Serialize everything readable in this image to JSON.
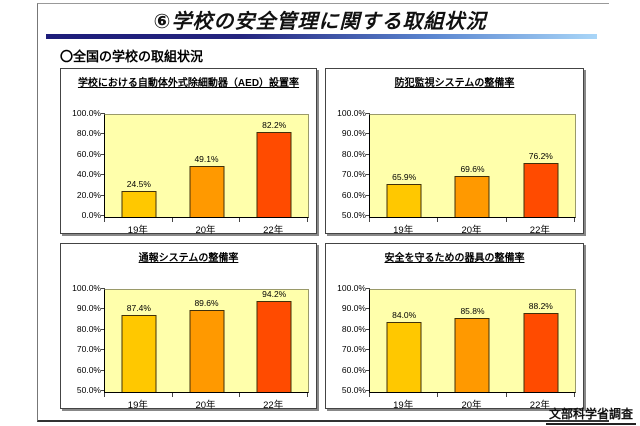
{
  "header": {
    "title": "⑥学校の安全管理に関する取組状況"
  },
  "section_heading": "〇全国の学校の取組状況",
  "footer": {
    "source_label": "文部科学省調査"
  },
  "colors": {
    "bar_19": "#ffc800",
    "bar_20": "#ff9900",
    "bar_22": "#ff4b00",
    "plot_bg": "#ffffab",
    "divider_start": "#1d1d7a",
    "divider_end": "#a9d6f8"
  },
  "chart_data": [
    {
      "id": "aed-installation",
      "type": "bar",
      "title": "学校における自動体外式除細動器（AED）設置率",
      "categories": [
        "19年",
        "20年",
        "22年"
      ],
      "values": [
        24.5,
        49.1,
        82.2
      ],
      "value_labels": [
        "24.5%",
        "49.1%",
        "82.2%"
      ],
      "ylim": [
        0,
        100
      ],
      "ytick_labels": [
        "0.0%",
        "20.0%",
        "40.0%",
        "60.0%",
        "80.0%",
        "100.0%"
      ],
      "grid": false,
      "legend": "none"
    },
    {
      "id": "security-monitoring-system",
      "type": "bar",
      "title": "防犯監視システムの整備率",
      "categories": [
        "19年",
        "20年",
        "22年"
      ],
      "values": [
        65.9,
        69.6,
        76.2
      ],
      "value_labels": [
        "65.9%",
        "69.6%",
        "76.2%"
      ],
      "ylim": [
        50,
        100
      ],
      "ytick_labels": [
        "50.0%",
        "60.0%",
        "70.0%",
        "80.0%",
        "90.0%",
        "100.0%"
      ],
      "grid": false,
      "legend": "none"
    },
    {
      "id": "notification-system",
      "type": "bar",
      "title": "通報システムの整備率",
      "categories": [
        "19年",
        "20年",
        "22年"
      ],
      "values": [
        87.4,
        89.6,
        94.2
      ],
      "value_labels": [
        "87.4%",
        "89.6%",
        "94.2%"
      ],
      "ylim": [
        50,
        100
      ],
      "ytick_labels": [
        "50.0%",
        "60.0%",
        "70.0%",
        "80.0%",
        "90.0%",
        "100.0%"
      ],
      "grid": false,
      "legend": "none"
    },
    {
      "id": "safety-equipment",
      "type": "bar",
      "title": "安全を守るための器具の整備率",
      "categories": [
        "19年",
        "20年",
        "22年"
      ],
      "values": [
        84.0,
        85.8,
        88.2
      ],
      "value_labels": [
        "84.0%",
        "85.8%",
        "88.2%"
      ],
      "ylim": [
        50,
        100
      ],
      "ytick_labels": [
        "50.0%",
        "60.0%",
        "70.0%",
        "80.0%",
        "90.0%",
        "100.0%"
      ],
      "grid": false,
      "legend": "none"
    }
  ]
}
